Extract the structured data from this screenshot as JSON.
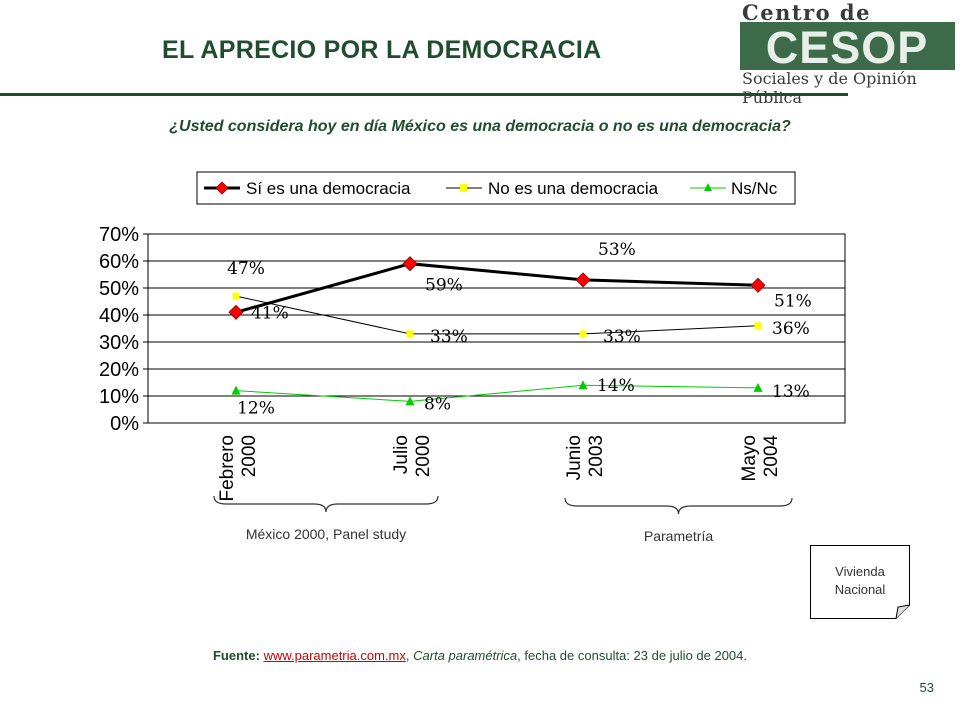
{
  "header": {
    "title": "EL APRECIO POR LA DEMOCRACIA",
    "logo_top": "Centro de Estudios",
    "logo_mark": "CESOP",
    "logo_bottom": "Sociales y de Opinión Pública"
  },
  "question": "¿Usted considera hoy en día México es una democracia o no es una democracia?",
  "chart_data": {
    "type": "line",
    "categories": [
      "Febrero 2000",
      "Julio 2000",
      "Junio 2003",
      "Mayo 2004"
    ],
    "category_lines": [
      [
        "Febrero",
        "2000"
      ],
      [
        "Julio",
        "2000"
      ],
      [
        "Junio",
        "2003"
      ],
      [
        "Mayo",
        "2004"
      ]
    ],
    "ylim": [
      0,
      70
    ],
    "yticks": [
      "0%",
      "10%",
      "20%",
      "30%",
      "40%",
      "50%",
      "60%",
      "70%"
    ],
    "grid": true,
    "legend_position": "top",
    "series": [
      {
        "name": "Sí es una democracia",
        "values": [
          41,
          59,
          53,
          51
        ],
        "labels": [
          "41%",
          "59%",
          "53%",
          "51%"
        ],
        "color": "#000000",
        "marker": "diamond-red"
      },
      {
        "name": "No es una democracia",
        "values": [
          47,
          33,
          33,
          36
        ],
        "labels": [
          "47%",
          "33%",
          "33%",
          "36%"
        ],
        "color": "#000000",
        "marker": "square-yellow"
      },
      {
        "name": "Ns/Nc",
        "values": [
          12,
          8,
          14,
          13
        ],
        "labels": [
          "12%",
          "8%",
          "14%",
          "13%"
        ],
        "color": "#00cc00",
        "marker": "triangle-green"
      }
    ],
    "groups": [
      {
        "label": "México 2000, Panel study",
        "categories": [
          "Febrero 2000",
          "Julio 2000"
        ]
      },
      {
        "label": "Parametría",
        "categories": [
          "Junio 2003",
          "Mayo 2004"
        ]
      }
    ]
  },
  "note": {
    "line1": "Vivienda",
    "line2": "Nacional"
  },
  "source": {
    "label": "Fuente:",
    "link": "www.parametria.com.mx",
    "sep": ",",
    "italic": "Carta paramétrica",
    "rest": ", fecha de consulta: 23 de julio de 2004."
  },
  "page_number": "53",
  "colors": {
    "accent": "#1f4d2e",
    "red_marker": "#ff0000",
    "yellow_marker": "#ffff00",
    "green_series": "#00cc00"
  }
}
